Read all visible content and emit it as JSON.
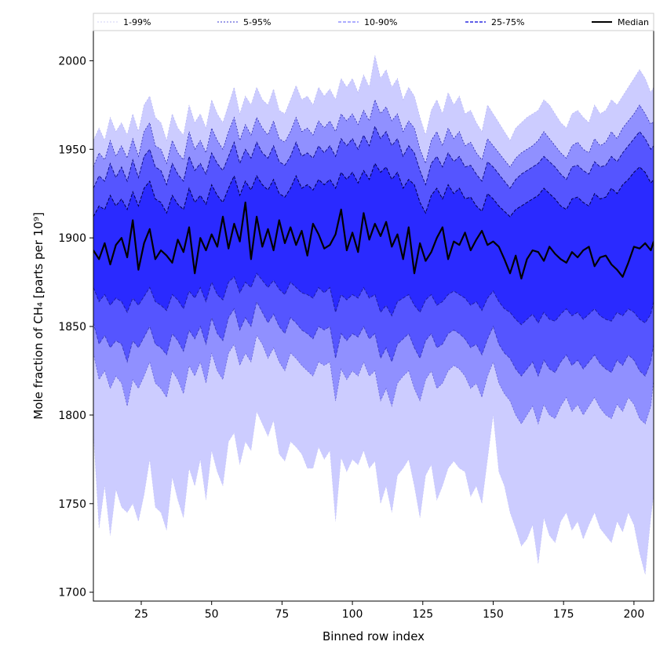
{
  "chart_data": {
    "type": "area",
    "xlabel": "Binned row index",
    "ylabel": "Mole fraction of CH₄ [parts per 10⁹]",
    "xlim": [
      8,
      207
    ],
    "ylim": [
      1695,
      2017
    ],
    "xticks": [
      25,
      50,
      75,
      100,
      125,
      150,
      175,
      200
    ],
    "yticks": [
      1700,
      1750,
      1800,
      1850,
      1900,
      1950,
      2000
    ],
    "grid": false,
    "legend_position": "top",
    "legend": [
      {
        "label": "1-99%",
        "color": "#cfcfff",
        "style": "dashed-thin"
      },
      {
        "label": "5-95%",
        "color": "#2b2bd0",
        "style": "dashed-thin"
      },
      {
        "label": "10-90%",
        "color": "#6b6bff",
        "style": "dashed"
      },
      {
        "label": "25-75%",
        "color": "#3030e0",
        "style": "dashed"
      },
      {
        "label": "Median",
        "color": "#000000",
        "style": "solid"
      }
    ],
    "band_colors": [
      "#ccccff",
      "#9090ff",
      "#5555ff",
      "#2a2aff"
    ],
    "x_anchor": [
      8,
      10,
      12,
      14,
      16,
      18,
      20,
      22,
      24,
      26,
      28,
      30,
      32,
      34,
      36,
      38,
      40,
      42,
      44,
      46,
      48,
      50,
      52,
      54,
      56,
      58,
      60,
      62,
      64,
      66,
      68,
      70,
      72,
      74,
      76,
      78,
      80,
      82,
      84,
      86,
      88,
      90,
      92,
      94,
      96,
      98,
      100,
      102,
      104,
      106,
      108,
      110,
      112,
      114,
      116,
      118,
      120,
      122,
      124,
      126,
      128,
      130,
      132,
      134,
      136,
      138,
      140,
      142,
      144,
      146,
      148,
      150,
      152,
      154,
      156,
      158,
      160,
      162,
      164,
      166,
      168,
      170,
      172,
      174,
      176,
      178,
      180,
      182,
      184,
      186,
      188,
      190,
      192,
      194,
      196,
      198,
      200,
      202,
      204,
      206,
      207
    ],
    "series": [
      {
        "name": "1-99%",
        "low": [
          1790,
          1736,
          1760,
          1732,
          1758,
          1748,
          1745,
          1750,
          1740,
          1755,
          1775,
          1748,
          1745,
          1735,
          1765,
          1752,
          1742,
          1770,
          1760,
          1775,
          1752,
          1780,
          1768,
          1760,
          1785,
          1790,
          1772,
          1785,
          1780,
          1802,
          1795,
          1788,
          1797,
          1778,
          1774,
          1785,
          1782,
          1778,
          1770,
          1770,
          1782,
          1775,
          1780,
          1740,
          1776,
          1768,
          1775,
          1772,
          1780,
          1770,
          1774,
          1750,
          1760,
          1745,
          1766,
          1770,
          1775,
          1760,
          1742,
          1766,
          1772,
          1752,
          1760,
          1770,
          1774,
          1770,
          1768,
          1754,
          1760,
          1750,
          1775,
          1800,
          1768,
          1760,
          1745,
          1736,
          1726,
          1730,
          1738,
          1716,
          1742,
          1732,
          1728,
          1740,
          1745,
          1735,
          1740,
          1730,
          1738,
          1745,
          1736,
          1732,
          1728,
          1740,
          1734,
          1745,
          1738,
          1722,
          1710,
          1742,
          1755
        ],
        "high": [
          1955,
          1962,
          1955,
          1968,
          1960,
          1965,
          1958,
          1970,
          1960,
          1975,
          1980,
          1968,
          1965,
          1955,
          1970,
          1962,
          1958,
          1975,
          1965,
          1970,
          1962,
          1978,
          1970,
          1965,
          1975,
          1985,
          1970,
          1980,
          1975,
          1985,
          1978,
          1975,
          1984,
          1972,
          1970,
          1978,
          1986,
          1978,
          1980,
          1975,
          1985,
          1980,
          1984,
          1978,
          1990,
          1985,
          1990,
          1982,
          1992,
          1985,
          2003,
          1990,
          1995,
          1985,
          1990,
          1978,
          1985,
          1980,
          1968,
          1958,
          1972,
          1978,
          1970,
          1982,
          1975,
          1980,
          1970,
          1972,
          1965,
          1960,
          1975,
          1970,
          1965,
          1960,
          1955,
          1962,
          1965,
          1968,
          1970,
          1972,
          1978,
          1975,
          1970,
          1965,
          1962,
          1970,
          1972,
          1968,
          1965,
          1975,
          1970,
          1972,
          1978,
          1975,
          1980,
          1985,
          1990,
          1995,
          1990,
          1982,
          1985
        ]
      },
      {
        "name": "5-95%",
        "low": [
          1835,
          1820,
          1825,
          1815,
          1822,
          1818,
          1805,
          1820,
          1815,
          1822,
          1830,
          1818,
          1815,
          1810,
          1825,
          1820,
          1812,
          1828,
          1822,
          1830,
          1818,
          1835,
          1825,
          1820,
          1835,
          1840,
          1828,
          1835,
          1830,
          1845,
          1840,
          1832,
          1838,
          1830,
          1825,
          1835,
          1832,
          1828,
          1825,
          1822,
          1830,
          1828,
          1830,
          1808,
          1826,
          1820,
          1825,
          1822,
          1830,
          1822,
          1825,
          1808,
          1815,
          1805,
          1818,
          1822,
          1825,
          1815,
          1808,
          1820,
          1825,
          1815,
          1818,
          1825,
          1828,
          1826,
          1822,
          1815,
          1818,
          1810,
          1822,
          1830,
          1818,
          1812,
          1808,
          1800,
          1795,
          1800,
          1805,
          1795,
          1806,
          1800,
          1798,
          1805,
          1810,
          1802,
          1806,
          1800,
          1805,
          1810,
          1804,
          1800,
          1798,
          1806,
          1802,
          1810,
          1806,
          1798,
          1795,
          1805,
          1820
        ],
        "high": [
          1940,
          1948,
          1944,
          1955,
          1946,
          1952,
          1945,
          1956,
          1946,
          1960,
          1965,
          1952,
          1950,
          1942,
          1955,
          1948,
          1944,
          1960,
          1950,
          1955,
          1948,
          1962,
          1955,
          1950,
          1960,
          1968,
          1955,
          1964,
          1958,
          1968,
          1962,
          1958,
          1966,
          1956,
          1954,
          1960,
          1968,
          1960,
          1962,
          1958,
          1966,
          1962,
          1966,
          1960,
          1970,
          1966,
          1970,
          1964,
          1972,
          1966,
          1978,
          1970,
          1974,
          1966,
          1970,
          1960,
          1966,
          1962,
          1950,
          1942,
          1955,
          1960,
          1952,
          1962,
          1956,
          1960,
          1952,
          1954,
          1948,
          1944,
          1956,
          1952,
          1948,
          1944,
          1940,
          1945,
          1948,
          1950,
          1952,
          1955,
          1960,
          1956,
          1952,
          1948,
          1945,
          1952,
          1954,
          1950,
          1948,
          1956,
          1952,
          1954,
          1960,
          1956,
          1962,
          1966,
          1970,
          1975,
          1970,
          1964,
          1966
        ]
      },
      {
        "name": "10-90%",
        "low": [
          1852,
          1840,
          1845,
          1838,
          1842,
          1840,
          1830,
          1842,
          1838,
          1844,
          1850,
          1840,
          1838,
          1834,
          1846,
          1842,
          1836,
          1848,
          1843,
          1850,
          1840,
          1855,
          1846,
          1842,
          1855,
          1860,
          1848,
          1855,
          1850,
          1864,
          1858,
          1852,
          1857,
          1850,
          1846,
          1855,
          1852,
          1848,
          1846,
          1843,
          1850,
          1848,
          1850,
          1832,
          1846,
          1842,
          1846,
          1844,
          1850,
          1843,
          1846,
          1832,
          1838,
          1830,
          1840,
          1843,
          1846,
          1838,
          1832,
          1842,
          1846,
          1838,
          1840,
          1846,
          1848,
          1846,
          1843,
          1838,
          1840,
          1834,
          1843,
          1850,
          1840,
          1835,
          1832,
          1826,
          1822,
          1826,
          1830,
          1822,
          1831,
          1826,
          1824,
          1830,
          1834,
          1828,
          1831,
          1826,
          1830,
          1834,
          1829,
          1826,
          1824,
          1831,
          1828,
          1834,
          1831,
          1825,
          1822,
          1830,
          1840
        ],
        "high": [
          1928,
          1935,
          1932,
          1942,
          1934,
          1940,
          1932,
          1944,
          1934,
          1946,
          1950,
          1940,
          1938,
          1930,
          1942,
          1936,
          1932,
          1946,
          1938,
          1942,
          1936,
          1948,
          1942,
          1938,
          1946,
          1954,
          1942,
          1950,
          1945,
          1954,
          1948,
          1945,
          1952,
          1943,
          1941,
          1946,
          1954,
          1946,
          1948,
          1945,
          1952,
          1948,
          1952,
          1946,
          1956,
          1952,
          1956,
          1950,
          1958,
          1952,
          1963,
          1956,
          1960,
          1952,
          1956,
          1946,
          1952,
          1948,
          1938,
          1930,
          1942,
          1946,
          1940,
          1948,
          1943,
          1946,
          1940,
          1941,
          1936,
          1932,
          1943,
          1940,
          1936,
          1932,
          1928,
          1933,
          1936,
          1938,
          1940,
          1942,
          1946,
          1943,
          1940,
          1936,
          1933,
          1940,
          1941,
          1938,
          1936,
          1943,
          1940,
          1941,
          1946,
          1943,
          1948,
          1952,
          1956,
          1960,
          1956,
          1950,
          1952
        ]
      },
      {
        "name": "25-75%",
        "low": [
          1872,
          1864,
          1868,
          1862,
          1866,
          1864,
          1858,
          1866,
          1862,
          1867,
          1872,
          1864,
          1862,
          1859,
          1868,
          1865,
          1860,
          1870,
          1866,
          1872,
          1864,
          1875,
          1868,
          1865,
          1875,
          1878,
          1869,
          1875,
          1872,
          1880,
          1876,
          1872,
          1876,
          1871,
          1868,
          1875,
          1872,
          1869,
          1868,
          1866,
          1872,
          1869,
          1872,
          1858,
          1868,
          1865,
          1868,
          1866,
          1872,
          1866,
          1868,
          1858,
          1862,
          1856,
          1864,
          1866,
          1868,
          1862,
          1858,
          1865,
          1868,
          1862,
          1864,
          1868,
          1870,
          1868,
          1866,
          1862,
          1864,
          1859,
          1866,
          1870,
          1864,
          1860,
          1858,
          1854,
          1851,
          1854,
          1857,
          1852,
          1858,
          1854,
          1853,
          1857,
          1860,
          1856,
          1858,
          1854,
          1857,
          1860,
          1856,
          1854,
          1853,
          1858,
          1856,
          1860,
          1858,
          1854,
          1852,
          1857,
          1864
        ],
        "high": [
          1912,
          1918,
          1916,
          1924,
          1918,
          1922,
          1916,
          1926,
          1918,
          1928,
          1932,
          1922,
          1920,
          1914,
          1924,
          1919,
          1916,
          1928,
          1920,
          1924,
          1919,
          1930,
          1924,
          1920,
          1928,
          1935,
          1924,
          1932,
          1927,
          1935,
          1930,
          1927,
          1933,
          1925,
          1923,
          1928,
          1935,
          1928,
          1930,
          1927,
          1933,
          1930,
          1933,
          1928,
          1937,
          1933,
          1937,
          1931,
          1938,
          1933,
          1942,
          1937,
          1940,
          1933,
          1937,
          1928,
          1933,
          1930,
          1920,
          1914,
          1924,
          1928,
          1922,
          1930,
          1925,
          1928,
          1922,
          1923,
          1918,
          1915,
          1925,
          1922,
          1918,
          1915,
          1912,
          1916,
          1918,
          1920,
          1922,
          1924,
          1928,
          1925,
          1922,
          1918,
          1916,
          1922,
          1923,
          1920,
          1918,
          1925,
          1922,
          1923,
          1928,
          1925,
          1930,
          1933,
          1937,
          1940,
          1937,
          1931,
          1933
        ]
      },
      {
        "name": "Median",
        "values": [
          1893,
          1888,
          1897,
          1885,
          1896,
          1900,
          1889,
          1910,
          1882,
          1897,
          1905,
          1888,
          1893,
          1890,
          1886,
          1899,
          1892,
          1906,
          1880,
          1900,
          1893,
          1902,
          1895,
          1912,
          1894,
          1908,
          1898,
          1920,
          1888,
          1912,
          1895,
          1905,
          1893,
          1910,
          1897,
          1906,
          1896,
          1904,
          1890,
          1908,
          1902,
          1894,
          1896,
          1902,
          1916,
          1893,
          1903,
          1892,
          1914,
          1899,
          1908,
          1901,
          1909,
          1895,
          1902,
          1888,
          1906,
          1880,
          1897,
          1887,
          1892,
          1900,
          1906,
          1888,
          1898,
          1896,
          1903,
          1893,
          1899,
          1904,
          1896,
          1898,
          1895,
          1888,
          1880,
          1890,
          1877,
          1888,
          1893,
          1892,
          1887,
          1895,
          1891,
          1888,
          1886,
          1892,
          1889,
          1893,
          1895,
          1884,
          1889,
          1890,
          1885,
          1882,
          1878,
          1886,
          1895,
          1894,
          1897,
          1893,
          1898
        ]
      }
    ]
  }
}
